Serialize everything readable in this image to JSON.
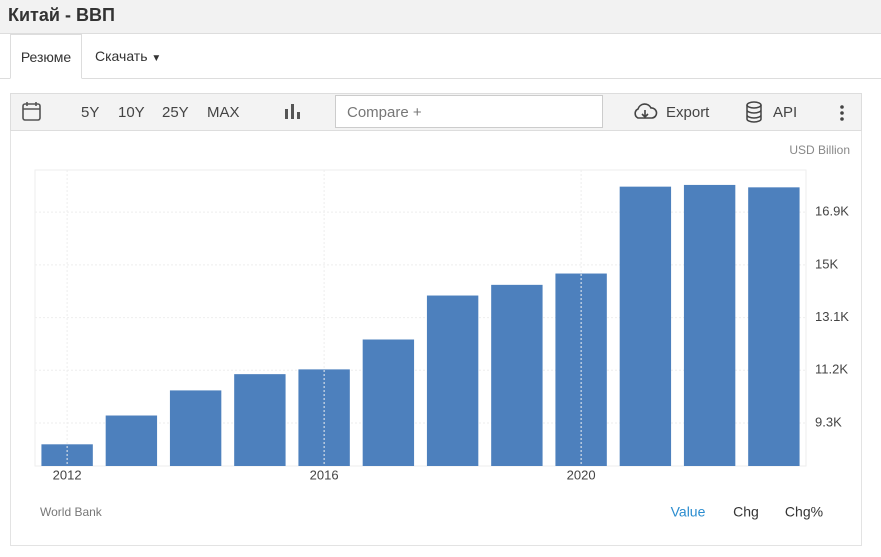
{
  "header": {
    "title": "Китай - ВВП"
  },
  "tabs": [
    "Резюме",
    "Скачать"
  ],
  "toolbar": {
    "ranges": [
      "5Y",
      "10Y",
      "25Y",
      "MAX"
    ],
    "compare": "Compare +",
    "export": "Export",
    "api": "API"
  },
  "chart_data": {
    "type": "bar",
    "unit": "USD Billion",
    "source": "World Bank",
    "categories": [
      "2012",
      null,
      null,
      null,
      "2016",
      null,
      null,
      null,
      "2020",
      null,
      null,
      null
    ],
    "values": [
      8532,
      9570,
      10475,
      11061,
      11233,
      12310,
      13895,
      14280,
      14688,
      17820,
      17882,
      17795
    ],
    "color": "#4d80bd",
    "ylim": [
      7750,
      18420
    ],
    "yticks": [
      {
        "value": 9300,
        "label": "9.3K"
      },
      {
        "value": 11200,
        "label": "11.2K"
      },
      {
        "value": 13100,
        "label": "13.1K"
      },
      {
        "value": 15000,
        "label": "15K"
      },
      {
        "value": 16900,
        "label": "16.9K"
      }
    ],
    "grid": true
  },
  "footer_options": [
    "Value",
    "Chg",
    "Chg%"
  ]
}
